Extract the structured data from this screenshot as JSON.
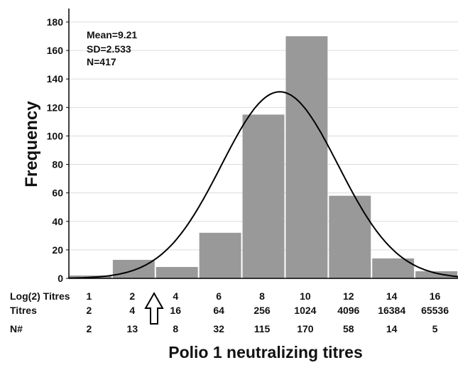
{
  "chart_data": {
    "type": "bar",
    "title": "",
    "xlabel": "Polio 1 neutralizing titres",
    "ylabel": "Frequency",
    "ylim": [
      0,
      180
    ],
    "yticks": [
      "0",
      "20",
      "40",
      "60",
      "80",
      "100",
      "120",
      "140",
      "160",
      "180"
    ],
    "grid": "horizontal",
    "stats": [
      "Mean=9.21",
      "SD=2.533",
      "N=417"
    ],
    "row_labels": {
      "log2": "Log(2) Titres",
      "titres": "Titres",
      "n": "N#"
    },
    "categories": [
      {
        "log2": "1",
        "titre": "2",
        "n": "2",
        "value": 2
      },
      {
        "log2": "2",
        "titre": "4",
        "n": "13",
        "value": 13
      },
      {
        "log2": "4",
        "titre": "16",
        "n": "8",
        "value": 8
      },
      {
        "log2": "6",
        "titre": "64",
        "n": "32",
        "value": 32
      },
      {
        "log2": "8",
        "titre": "256",
        "n": "115",
        "value": 115
      },
      {
        "log2": "10",
        "titre": "1024",
        "n": "170",
        "value": 170
      },
      {
        "log2": "12",
        "titre": "4096",
        "n": "58",
        "value": 58
      },
      {
        "log2": "14",
        "titre": "16384",
        "n": "14",
        "value": 14
      },
      {
        "log2": "16",
        "titre": "65536",
        "n": "5",
        "value": 5
      }
    ],
    "normal_curve": {
      "peak": 131
    },
    "bar_color": "#999999",
    "curve_color": "#000000",
    "annotation": "arrow pointing up at the gap between the 2 and 4 titre bins"
  }
}
